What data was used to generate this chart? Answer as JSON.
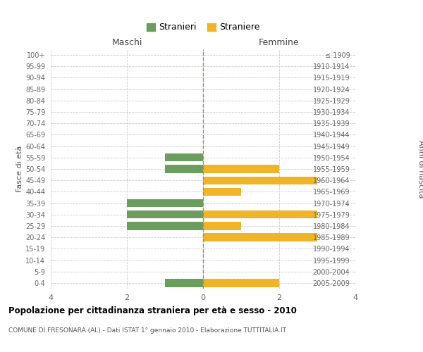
{
  "age_groups": [
    "100+",
    "95-99",
    "90-94",
    "85-89",
    "80-84",
    "75-79",
    "70-74",
    "65-69",
    "60-64",
    "55-59",
    "50-54",
    "45-49",
    "40-44",
    "35-39",
    "30-34",
    "25-29",
    "20-24",
    "15-19",
    "10-14",
    "5-9",
    "0-4"
  ],
  "birth_years": [
    "≤ 1909",
    "1910-1914",
    "1915-1919",
    "1920-1924",
    "1925-1929",
    "1930-1934",
    "1935-1939",
    "1940-1944",
    "1945-1949",
    "1950-1954",
    "1955-1959",
    "1960-1964",
    "1965-1969",
    "1970-1974",
    "1975-1979",
    "1980-1984",
    "1985-1989",
    "1990-1994",
    "1995-1999",
    "2000-2004",
    "2005-2009"
  ],
  "maschi": [
    0,
    0,
    0,
    0,
    0,
    0,
    0,
    0,
    0,
    1,
    1,
    0,
    0,
    2,
    2,
    2,
    0,
    0,
    0,
    0,
    1
  ],
  "femmine": [
    0,
    0,
    0,
    0,
    0,
    0,
    0,
    0,
    0,
    0,
    2,
    3,
    1,
    0,
    3,
    1,
    3,
    0,
    0,
    0,
    2
  ],
  "color_maschi": "#6b9e5e",
  "color_femmine": "#f0b429",
  "title_main": "Popolazione per cittadinanza straniera per età e sesso - 2010",
  "title_sub": "COMUNE DI FRESONARA (AL) - Dati ISTAT 1° gennaio 2010 - Elaborazione TUTTITALIA.IT",
  "xlabel_left": "Maschi",
  "xlabel_right": "Femmine",
  "ylabel_left": "Fasce di età",
  "ylabel_right": "Anni di nascita",
  "legend_maschi": "Stranieri",
  "legend_femmine": "Straniere",
  "xlim": 4,
  "bg_color": "#ffffff",
  "grid_color": "#cccccc",
  "bar_height": 0.7,
  "center_line_color": "#999944"
}
